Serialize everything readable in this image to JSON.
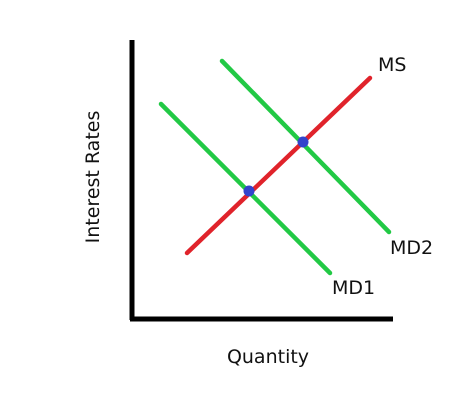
{
  "diagram": {
    "axes": {
      "y_label": "Interest Rates",
      "x_label": "Quantity"
    },
    "curves": {
      "ms": {
        "label": "MS",
        "color": "#e0232b"
      },
      "md1": {
        "label": "MD1",
        "color": "#22c945"
      },
      "md2": {
        "label": "MD2",
        "color": "#22c945"
      }
    },
    "points": {
      "color": "#3344cc"
    },
    "axis_color": "#000000"
  }
}
